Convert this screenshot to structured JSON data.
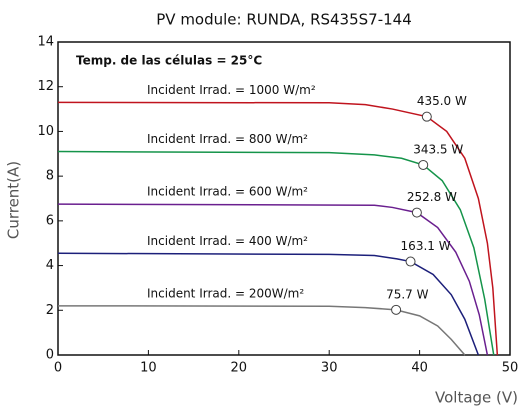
{
  "chart_data": {
    "type": "line",
    "title": "PV module: RUNDA, RS435S7-144",
    "xlabel": "Voltage (V)",
    "ylabel": "Current(A)",
    "annotation": "Temp. de las células = 25°C",
    "xlim": [
      0,
      50
    ],
    "xticks": [
      0,
      10,
      20,
      30,
      40,
      50
    ],
    "ylim": [
      0,
      14
    ],
    "yticks": [
      0,
      2,
      4,
      6,
      8,
      10,
      12,
      14
    ],
    "grid": false,
    "series": [
      {
        "name": "Incident Irrad. = 1000 W/m²",
        "color": "#c0141e",
        "x": [
          0,
          30,
          34,
          37,
          40.8,
          43,
          45,
          46.5,
          47.5,
          48.1,
          48.6
        ],
        "values": [
          11.3,
          11.28,
          11.2,
          11.0,
          10.66,
          10.0,
          8.8,
          7,
          5,
          3,
          0
        ],
        "mpp": {
          "x": 40.8,
          "y": 10.66
        },
        "mpp_label": "435.0 W"
      },
      {
        "name": "Incident Irrad. = 800 W/m²",
        "color": "#15944a",
        "x": [
          0,
          30,
          35,
          38,
          40.4,
          42.5,
          44.5,
          46,
          47.2,
          48.2
        ],
        "values": [
          9.1,
          9.05,
          8.95,
          8.8,
          8.5,
          7.8,
          6.5,
          4.8,
          2.5,
          0
        ],
        "mpp": {
          "x": 40.4,
          "y": 8.5
        },
        "mpp_label": "343.5 W"
      },
      {
        "name": "Incident Irrad. = 600 W/m²",
        "color": "#6a1f8f",
        "x": [
          0,
          35,
          37,
          39.7,
          42,
          44,
          45.5,
          46.6,
          47.5
        ],
        "values": [
          6.75,
          6.7,
          6.6,
          6.37,
          5.7,
          4.6,
          3.3,
          1.8,
          0
        ],
        "mpp": {
          "x": 39.7,
          "y": 6.37
        },
        "mpp_label": "252.8 W"
      },
      {
        "name": "Incident Irrad. = 400 W/m²",
        "color": "#1c1f7a",
        "x": [
          0,
          30,
          35,
          37.5,
          39,
          41.5,
          43.5,
          45,
          46.5
        ],
        "values": [
          4.55,
          4.5,
          4.45,
          4.3,
          4.18,
          3.6,
          2.7,
          1.6,
          0
        ],
        "mpp": {
          "x": 39,
          "y": 4.18
        },
        "mpp_label": "163.1 W"
      },
      {
        "name": "Incident Irrad. = 200W/m²",
        "color": "#777777",
        "x": [
          0,
          30,
          34,
          37.4,
          40,
          42,
          43.5,
          45
        ],
        "values": [
          2.2,
          2.18,
          2.12,
          2.02,
          1.75,
          1.3,
          0.7,
          0
        ],
        "mpp": {
          "x": 37.4,
          "y": 2.02
        },
        "mpp_label": "75.7 W"
      }
    ]
  }
}
